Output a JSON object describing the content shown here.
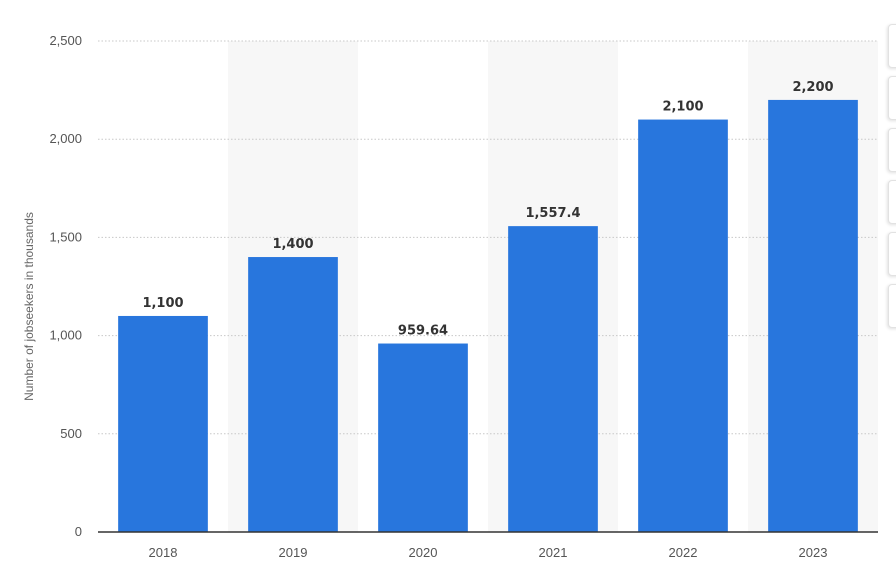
{
  "chart_data": {
    "type": "bar",
    "categories": [
      "2018",
      "2019",
      "2020",
      "2021",
      "2022",
      "2023"
    ],
    "values": [
      1100,
      1400,
      959.64,
      1557.4,
      2100,
      2200
    ],
    "value_labels": [
      "1,100",
      "1,400",
      "959.64",
      "1,557.4",
      "2,100",
      "2,200"
    ],
    "title": "",
    "xlabel": "",
    "ylabel": "Number of jobseekers in thousands",
    "ylim": [
      0,
      2500
    ],
    "yticks": [
      0,
      500,
      1000,
      1500,
      2000,
      2500
    ],
    "ytick_labels": [
      "0",
      "500",
      "1,000",
      "1,500",
      "2,000",
      "2,500"
    ],
    "grid": true,
    "legend": "none",
    "bar_color": "#2876dd",
    "band_color": "#f7f7f7"
  }
}
